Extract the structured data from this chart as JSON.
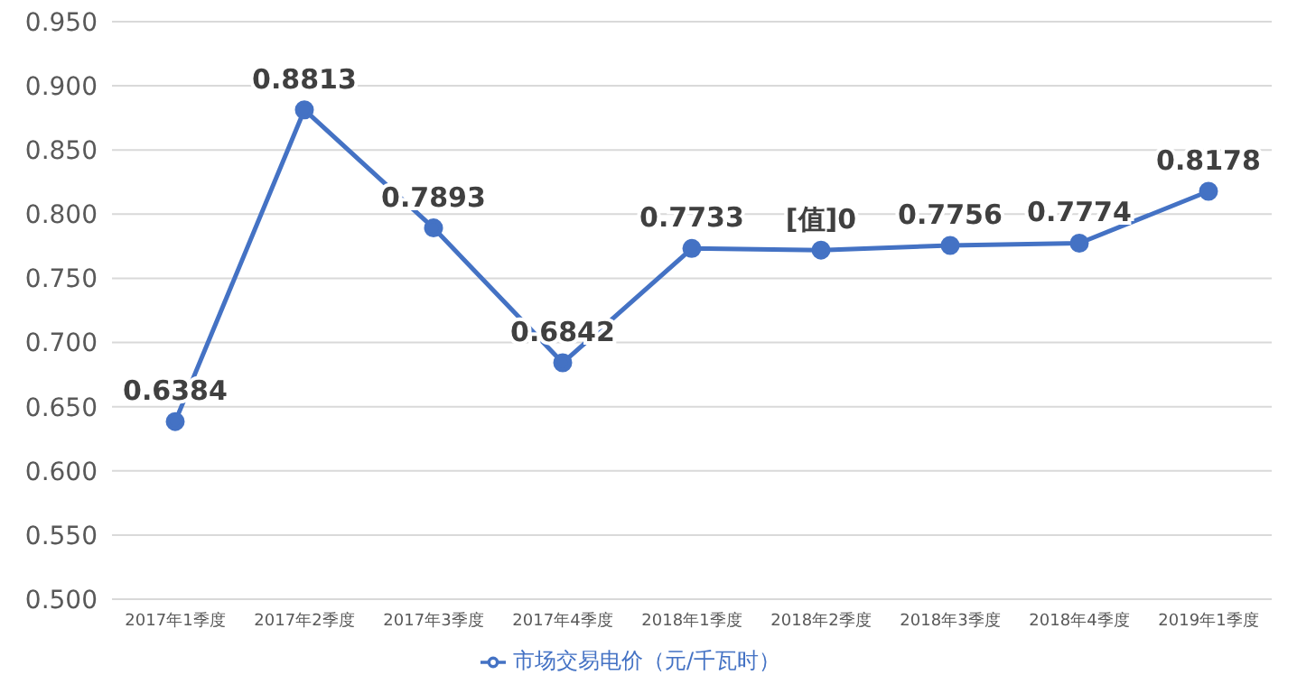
{
  "chart_data": {
    "type": "line",
    "categories": [
      "2017年1季度",
      "2017年2季度",
      "2017年3季度",
      "2017年4季度",
      "2018年1季度",
      "2018年2季度",
      "2018年3季度",
      "2018年4季度",
      "2019年1季度"
    ],
    "series": [
      {
        "name": "市场交易电价（元/千瓦时）",
        "color": "#4472c4",
        "values": [
          0.6384,
          0.8813,
          0.7893,
          0.6842,
          0.7733,
          0.772,
          0.7756,
          0.7774,
          0.8178
        ],
        "value_labels": [
          "0.6384",
          "0.8813",
          "0.7893",
          "0.6842",
          "0.7733",
          null,
          "0.7756",
          "0.7774",
          "0.8178"
        ]
      }
    ],
    "ylim": [
      0.5,
      0.95
    ],
    "yticks": [
      {
        "value": 0.5,
        "label": "0.500"
      },
      {
        "value": 0.55,
        "label": "0.550"
      },
      {
        "value": 0.6,
        "label": "0.600"
      },
      {
        "value": 0.65,
        "label": "0.650"
      },
      {
        "value": 0.7,
        "label": "0.700"
      },
      {
        "value": 0.75,
        "label": "0.750"
      },
      {
        "value": 0.8,
        "label": "0.800"
      },
      {
        "value": 0.85,
        "label": "0.850"
      },
      {
        "value": 0.9,
        "label": "0.900"
      },
      {
        "value": 0.95,
        "label": "0.950"
      }
    ],
    "annotations": [
      {
        "text": "[值]0",
        "x": "2018年2季度",
        "y": 0.772
      }
    ],
    "grid": "y",
    "legend": "bottom",
    "marker": "circle",
    "line_style": "solid"
  }
}
